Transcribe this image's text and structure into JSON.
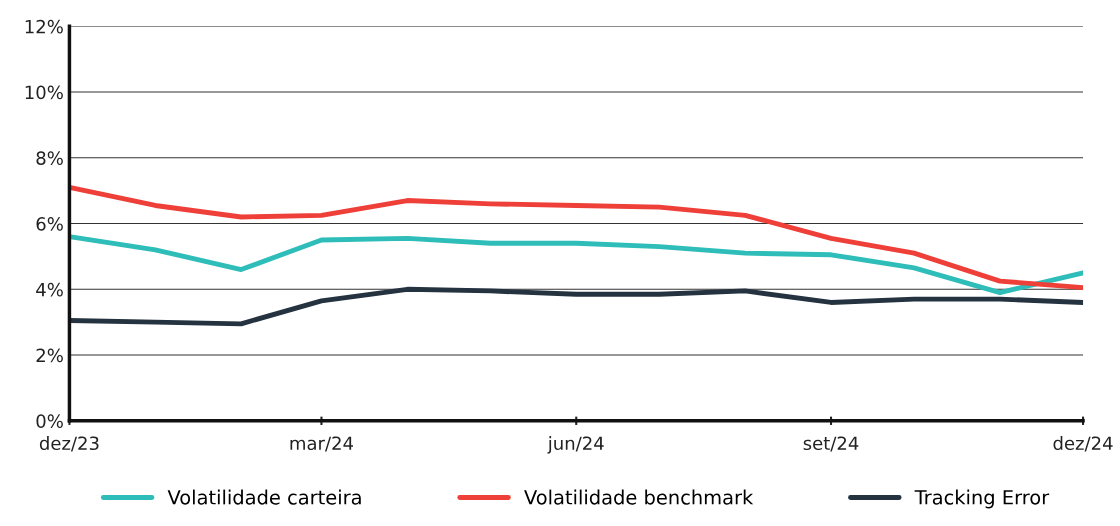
{
  "chart_data": {
    "type": "line",
    "x": [
      "2023-12",
      "2024-01",
      "2024-02",
      "2024-03",
      "2024-04",
      "2024-05",
      "2024-06",
      "2024-07",
      "2024-08",
      "2024-09",
      "2024-10",
      "2024-11",
      "2024-12"
    ],
    "series": [
      {
        "name": "Volatilidade carteira",
        "color": "#2ebdb8",
        "values": [
          5.6,
          5.2,
          4.6,
          5.5,
          5.55,
          5.4,
          5.4,
          5.3,
          5.1,
          5.05,
          4.65,
          3.9,
          4.5
        ]
      },
      {
        "name": "Volatilidade benchmark",
        "color": "#ee3f39",
        "values": [
          7.1,
          6.55,
          6.2,
          6.25,
          6.7,
          6.6,
          6.55,
          6.5,
          6.25,
          5.55,
          5.1,
          4.25,
          4.05
        ]
      },
      {
        "name": "Tracking Error",
        "color": "#253240",
        "values": [
          3.05,
          3.0,
          2.95,
          3.65,
          4.0,
          3.95,
          3.85,
          3.85,
          3.95,
          3.6,
          3.7,
          3.7,
          3.6
        ]
      }
    ],
    "xlim": [
      "2023-12",
      "2024-12"
    ],
    "xticks": [
      {
        "value": "2023-12",
        "label": "dez/23"
      },
      {
        "value": "2024-03",
        "label": "mar/24"
      },
      {
        "value": "2024-06",
        "label": "jun/24"
      },
      {
        "value": "2024-09",
        "label": "set/24"
      },
      {
        "value": "2024-12",
        "label": "dez/24"
      }
    ],
    "ylim": [
      0,
      12
    ],
    "yticks": [
      {
        "value": 0,
        "label": "0%"
      },
      {
        "value": 2,
        "label": "2%"
      },
      {
        "value": 4,
        "label": "4%"
      },
      {
        "value": 6,
        "label": "6%"
      },
      {
        "value": 8,
        "label": "8%"
      },
      {
        "value": 10,
        "label": "10%"
      },
      {
        "value": 12,
        "label": "12%"
      }
    ],
    "grid": "y",
    "legend": "bottom",
    "marker": "none",
    "line_style": "solid"
  }
}
